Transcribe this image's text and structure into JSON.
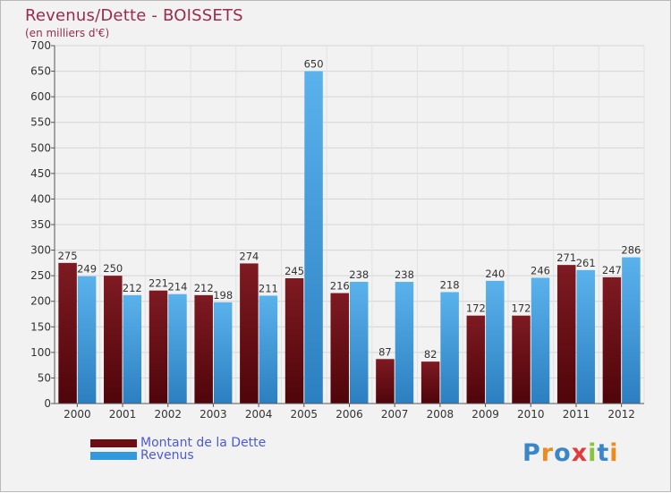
{
  "title": "Revenus/Dette - BOISSETS",
  "subtitle": "(en milliers d'€)",
  "logo_text": "Proxiti",
  "colors": {
    "dette": "#6b0d12",
    "revenus": "#3399dd",
    "title": "#9c2a4a",
    "legend_text": "#4b5ad6"
  },
  "chart_data": {
    "type": "bar",
    "title": "Revenus/Dette - BOISSETS",
    "subtitle": "(en milliers d'€)",
    "categories": [
      "2000",
      "2001",
      "2002",
      "2003",
      "2004",
      "2005",
      "2006",
      "2007",
      "2008",
      "2009",
      "2010",
      "2011",
      "2012"
    ],
    "series": [
      {
        "name": "Montant de la Dette",
        "values": [
          275,
          250,
          221,
          212,
          274,
          245,
          216,
          87,
          82,
          172,
          172,
          271,
          247
        ]
      },
      {
        "name": "Revenus",
        "values": [
          249,
          212,
          214,
          198,
          211,
          650,
          238,
          238,
          218,
          240,
          246,
          261,
          286
        ]
      }
    ],
    "ylim": [
      0,
      700
    ],
    "yticks": [
      0,
      50,
      100,
      150,
      200,
      250,
      300,
      350,
      400,
      450,
      500,
      550,
      600,
      650,
      700
    ],
    "grid": true,
    "legend_position": "bottom-left"
  }
}
